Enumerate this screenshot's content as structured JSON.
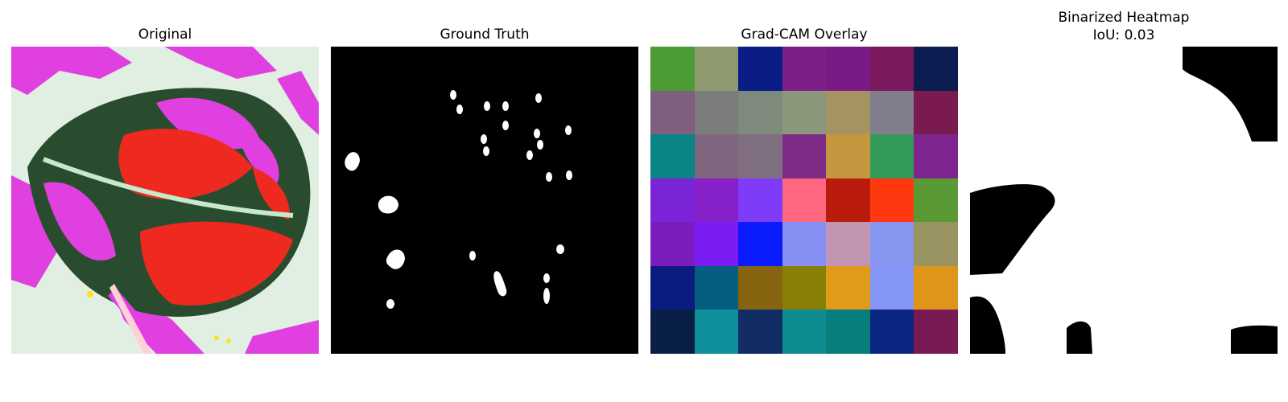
{
  "panels": {
    "original": {
      "title": "Original"
    },
    "ground_truth": {
      "title": "Ground Truth"
    },
    "gradcam": {
      "title": "Grad-CAM Overlay",
      "grid_colors": [
        [
          "#4c9b34",
          "#8e9a6e",
          "#0a1d86",
          "#7e1f88",
          "#7a1a86",
          "#7a1a5c",
          "#0c1d52"
        ],
        [
          "#7f5f7e",
          "#7d7c7c",
          "#7e8a7c",
          "#8b977a",
          "#a69362",
          "#807e8c",
          "#7a1a4e"
        ],
        [
          "#0a8484",
          "#7f657e",
          "#7f6f80",
          "#7d2c86",
          "#c4973e",
          "#339a5a",
          "#7e2590"
        ],
        [
          "#7a24d8",
          "#8620c8",
          "#7f3cf8",
          "#ff6680",
          "#b81a0c",
          "#ff3810",
          "#5a9a34"
        ],
        [
          "#7a1cbc",
          "#7c1cf4",
          "#0a1cfc",
          "#8690f4",
          "#c296b2",
          "#8696ee",
          "#9a9462"
        ],
        [
          "#0a1c80",
          "#055d80",
          "#866410",
          "#877f06",
          "#e09b1a",
          "#8696f4",
          "#de951a"
        ],
        [
          "#0a1f46",
          "#0e8f9a",
          "#122c64",
          "#0f8c90",
          "#067e7e",
          "#0a2680",
          "#7a1a54"
        ]
      ]
    },
    "binarized": {
      "title": "Binarized Heatmap",
      "subtitle": "IoU: 0.03"
    }
  }
}
